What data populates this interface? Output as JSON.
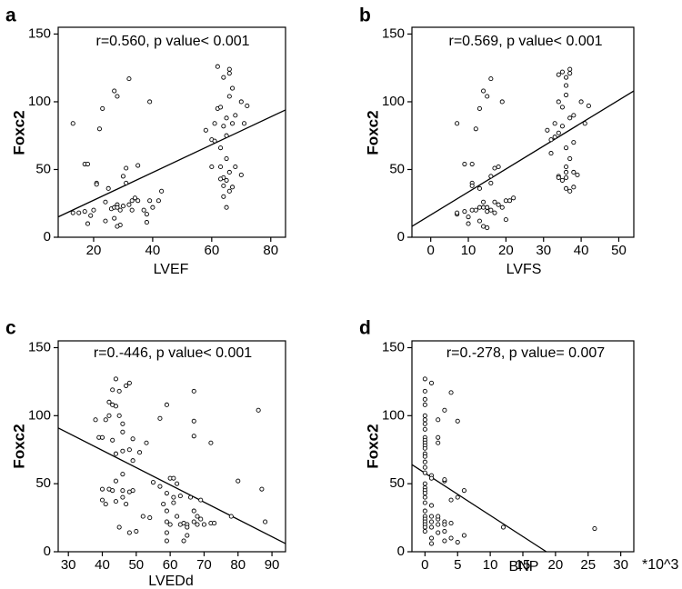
{
  "chart_data": [
    {
      "type": "scatter",
      "panel_label": "a",
      "annotation": "r=0.560, p value< 0.001",
      "xlabel": "LVEF",
      "ylabel": "Foxc2",
      "xlim": [
        8,
        85
      ],
      "ylim": [
        0,
        155
      ],
      "xticks": [
        20,
        40,
        60,
        80
      ],
      "yticks": [
        0,
        50,
        100,
        150
      ],
      "grid": false,
      "fit_line": [
        [
          8,
          15
        ],
        [
          85,
          94
        ]
      ],
      "points": [
        [
          13,
          18
        ],
        [
          13,
          84
        ],
        [
          15,
          18
        ],
        [
          17,
          54
        ],
        [
          18,
          54
        ],
        [
          17,
          19
        ],
        [
          18,
          10
        ],
        [
          19,
          16
        ],
        [
          20,
          20
        ],
        [
          21,
          40
        ],
        [
          21,
          39
        ],
        [
          22,
          80
        ],
        [
          23,
          95
        ],
        [
          24,
          26
        ],
        [
          24,
          12
        ],
        [
          25,
          36
        ],
        [
          26,
          21
        ],
        [
          27,
          22
        ],
        [
          27,
          14
        ],
        [
          27,
          108
        ],
        [
          28,
          104
        ],
        [
          28,
          24
        ],
        [
          29,
          9
        ],
        [
          28,
          8
        ],
        [
          28,
          22
        ],
        [
          29,
          20
        ],
        [
          30,
          23
        ],
        [
          30,
          45
        ],
        [
          31,
          51
        ],
        [
          31,
          40
        ],
        [
          32,
          117
        ],
        [
          32,
          24
        ],
        [
          33,
          20
        ],
        [
          33,
          27
        ],
        [
          34,
          29
        ],
        [
          35,
          27
        ],
        [
          35,
          53
        ],
        [
          37,
          20
        ],
        [
          38,
          11
        ],
        [
          38,
          17
        ],
        [
          39,
          27
        ],
        [
          39,
          100
        ],
        [
          40,
          22
        ],
        [
          43,
          34
        ],
        [
          42,
          27
        ],
        [
          58,
          79
        ],
        [
          60,
          52
        ],
        [
          60,
          72
        ],
        [
          61,
          71
        ],
        [
          61,
          84
        ],
        [
          62,
          126
        ],
        [
          62,
          95
        ],
        [
          63,
          96
        ],
        [
          63,
          66
        ],
        [
          63,
          52
        ],
        [
          64,
          30
        ],
        [
          64,
          118
        ],
        [
          64,
          82
        ],
        [
          64,
          44
        ],
        [
          64,
          38
        ],
        [
          65,
          88
        ],
        [
          65,
          75
        ],
        [
          65,
          58
        ],
        [
          65,
          42
        ],
        [
          66,
          121
        ],
        [
          66,
          124
        ],
        [
          66,
          104
        ],
        [
          66,
          48
        ],
        [
          66,
          34
        ],
        [
          67,
          84
        ],
        [
          67,
          37
        ],
        [
          67,
          110
        ],
        [
          68,
          90
        ],
        [
          68,
          52
        ],
        [
          70,
          100
        ],
        [
          70,
          46
        ],
        [
          71,
          84
        ],
        [
          72,
          97
        ],
        [
          63,
          43
        ],
        [
          65,
          22
        ]
      ]
    },
    {
      "type": "scatter",
      "panel_label": "b",
      "annotation": "r=0.569, p value< 0.001",
      "xlabel": "LVFS",
      "ylabel": "Foxc2",
      "xlim": [
        -5,
        54
      ],
      "ylim": [
        0,
        155
      ],
      "xticks": [
        0,
        10,
        20,
        30,
        40,
        50
      ],
      "yticks": [
        0,
        50,
        100,
        150
      ],
      "grid": false,
      "fit_line": [
        [
          -5,
          8
        ],
        [
          54,
          108
        ]
      ],
      "points": [
        [
          7,
          17
        ],
        [
          7,
          18
        ],
        [
          7,
          84
        ],
        [
          9,
          54
        ],
        [
          9,
          19
        ],
        [
          10,
          15
        ],
        [
          10,
          10
        ],
        [
          11,
          54
        ],
        [
          11,
          40
        ],
        [
          11,
          38
        ],
        [
          11,
          20
        ],
        [
          12,
          80
        ],
        [
          12,
          20
        ],
        [
          13,
          95
        ],
        [
          13,
          36
        ],
        [
          13,
          22
        ],
        [
          13,
          12
        ],
        [
          14,
          108
        ],
        [
          14,
          26
        ],
        [
          14,
          22
        ],
        [
          14,
          8
        ],
        [
          15,
          104
        ],
        [
          15,
          22
        ],
        [
          15,
          19
        ],
        [
          15,
          7
        ],
        [
          16,
          45
        ],
        [
          16,
          40
        ],
        [
          16,
          20
        ],
        [
          16,
          117
        ],
        [
          17,
          51
        ],
        [
          17,
          26
        ],
        [
          17,
          18
        ],
        [
          18,
          52
        ],
        [
          18,
          24
        ],
        [
          19,
          100
        ],
        [
          19,
          22
        ],
        [
          20,
          27
        ],
        [
          20,
          13
        ],
        [
          21,
          27
        ],
        [
          22,
          29
        ],
        [
          31,
          79
        ],
        [
          32,
          72
        ],
        [
          32,
          62
        ],
        [
          33,
          84
        ],
        [
          33,
          74
        ],
        [
          34,
          77
        ],
        [
          34,
          45
        ],
        [
          34,
          44
        ],
        [
          34,
          100
        ],
        [
          34,
          120
        ],
        [
          35,
          96
        ],
        [
          35,
          82
        ],
        [
          35,
          42
        ],
        [
          36,
          66
        ],
        [
          36,
          48
        ],
        [
          36,
          52
        ],
        [
          36,
          36
        ],
        [
          36,
          105
        ],
        [
          36,
          112
        ],
        [
          36,
          118
        ],
        [
          37,
          124
        ],
        [
          37,
          121
        ],
        [
          37,
          88
        ],
        [
          37,
          58
        ],
        [
          37,
          34
        ],
        [
          38,
          37
        ],
        [
          38,
          48
        ],
        [
          38,
          90
        ],
        [
          39,
          46
        ],
        [
          40,
          100
        ],
        [
          41,
          84
        ],
        [
          42,
          97
        ],
        [
          36,
          44
        ],
        [
          35,
          122
        ],
        [
          38,
          70
        ]
      ]
    },
    {
      "type": "scatter",
      "panel_label": "c",
      "annotation": "r=0.-446, p value< 0.001",
      "xlabel": "LVEDd",
      "ylabel": "Foxc2",
      "xlim": [
        27,
        94
      ],
      "ylim": [
        0,
        155
      ],
      "xticks": [
        30,
        40,
        50,
        60,
        70,
        80,
        90
      ],
      "yticks": [
        0,
        50,
        100,
        150
      ],
      "grid": false,
      "fit_line": [
        [
          27,
          91
        ],
        [
          94,
          6
        ]
      ],
      "points": [
        [
          38,
          97
        ],
        [
          39,
          84
        ],
        [
          40,
          84
        ],
        [
          40,
          46
        ],
        [
          40,
          38
        ],
        [
          41,
          35
        ],
        [
          41,
          97
        ],
        [
          42,
          100
        ],
        [
          42,
          110
        ],
        [
          42,
          46
        ],
        [
          43,
          119
        ],
        [
          43,
          108
        ],
        [
          43,
          82
        ],
        [
          43,
          45
        ],
        [
          44,
          127
        ],
        [
          44,
          107
        ],
        [
          44,
          72
        ],
        [
          44,
          52
        ],
        [
          44,
          37
        ],
        [
          45,
          18
        ],
        [
          45,
          118
        ],
        [
          45,
          100
        ],
        [
          46,
          88
        ],
        [
          46,
          74
        ],
        [
          46,
          57
        ],
        [
          46,
          45
        ],
        [
          46,
          94
        ],
        [
          46,
          40
        ],
        [
          47,
          122
        ],
        [
          47,
          35
        ],
        [
          48,
          75
        ],
        [
          48,
          44
        ],
        [
          48,
          124
        ],
        [
          48,
          14
        ],
        [
          49,
          83
        ],
        [
          49,
          67
        ],
        [
          49,
          45
        ],
        [
          50,
          15
        ],
        [
          51,
          73
        ],
        [
          52,
          26
        ],
        [
          53,
          80
        ],
        [
          54,
          25
        ],
        [
          55,
          51
        ],
        [
          57,
          98
        ],
        [
          57,
          48
        ],
        [
          59,
          108
        ],
        [
          59,
          43
        ],
        [
          59,
          30
        ],
        [
          59,
          22
        ],
        [
          59,
          14
        ],
        [
          59,
          8
        ],
        [
          60,
          54
        ],
        [
          60,
          20
        ],
        [
          61,
          54
        ],
        [
          61,
          40
        ],
        [
          61,
          36
        ],
        [
          62,
          50
        ],
        [
          62,
          26
        ],
        [
          63,
          20
        ],
        [
          64,
          21
        ],
        [
          64,
          8
        ],
        [
          65,
          20
        ],
        [
          65,
          18
        ],
        [
          65,
          12
        ],
        [
          66,
          40
        ],
        [
          67,
          118
        ],
        [
          67,
          96
        ],
        [
          67,
          85
        ],
        [
          67,
          30
        ],
        [
          67,
          22
        ],
        [
          68,
          20
        ],
        [
          68,
          26
        ],
        [
          69,
          38
        ],
        [
          69,
          24
        ],
        [
          70,
          20
        ],
        [
          72,
          80
        ],
        [
          72,
          21
        ],
        [
          73,
          21
        ],
        [
          78,
          26
        ],
        [
          80,
          52
        ],
        [
          86,
          104
        ],
        [
          87,
          46
        ],
        [
          88,
          22
        ],
        [
          63,
          41
        ],
        [
          58,
          35
        ]
      ]
    },
    {
      "type": "scatter",
      "panel_label": "d",
      "annotation": "r=0.-278, p value= 0.007",
      "xlabel": "BNP",
      "ylabel": "Foxc2",
      "x_unit_label": "*10^3",
      "xlim": [
        -2,
        32
      ],
      "ylim": [
        0,
        155
      ],
      "xticks": [
        0,
        5,
        10,
        15,
        20,
        25,
        30
      ],
      "yticks": [
        0,
        50,
        100,
        150
      ],
      "grid": false,
      "fit_line": [
        [
          -2,
          64
        ],
        [
          18.6,
          0
        ]
      ],
      "points": [
        [
          0,
          127
        ],
        [
          0,
          118
        ],
        [
          0,
          112
        ],
        [
          0,
          108
        ],
        [
          0,
          100
        ],
        [
          0,
          97
        ],
        [
          0,
          94
        ],
        [
          0,
          90
        ],
        [
          0,
          84
        ],
        [
          0,
          82
        ],
        [
          0,
          80
        ],
        [
          0,
          78
        ],
        [
          0,
          76
        ],
        [
          0,
          72
        ],
        [
          0,
          70
        ],
        [
          0,
          66
        ],
        [
          0,
          58
        ],
        [
          0,
          50
        ],
        [
          0,
          47
        ],
        [
          0,
          45
        ],
        [
          0,
          43
        ],
        [
          0,
          40
        ],
        [
          0,
          36
        ],
        [
          0,
          30
        ],
        [
          0,
          26
        ],
        [
          0,
          24
        ],
        [
          0,
          22
        ],
        [
          0,
          20
        ],
        [
          0,
          18
        ],
        [
          0,
          15
        ],
        [
          1,
          124
        ],
        [
          1,
          56
        ],
        [
          1,
          54
        ],
        [
          1,
          26
        ],
        [
          1,
          22
        ],
        [
          1,
          18
        ],
        [
          1,
          10
        ],
        [
          1,
          6
        ],
        [
          2,
          97
        ],
        [
          2,
          84
        ],
        [
          2,
          80
        ],
        [
          2,
          24
        ],
        [
          2,
          20
        ],
        [
          2,
          14
        ],
        [
          3,
          104
        ],
        [
          3,
          52
        ],
        [
          3,
          22
        ],
        [
          3,
          20
        ],
        [
          3,
          15
        ],
        [
          3,
          8
        ],
        [
          4,
          117
        ],
        [
          4,
          38
        ],
        [
          4,
          21
        ],
        [
          4,
          10
        ],
        [
          5,
          96
        ],
        [
          5,
          40
        ],
        [
          5,
          7
        ],
        [
          6,
          45
        ],
        [
          6,
          12
        ],
        [
          12,
          18
        ],
        [
          26,
          17
        ],
        [
          1,
          34
        ],
        [
          2,
          26
        ],
        [
          3,
          53
        ],
        [
          0,
          62
        ]
      ]
    }
  ]
}
